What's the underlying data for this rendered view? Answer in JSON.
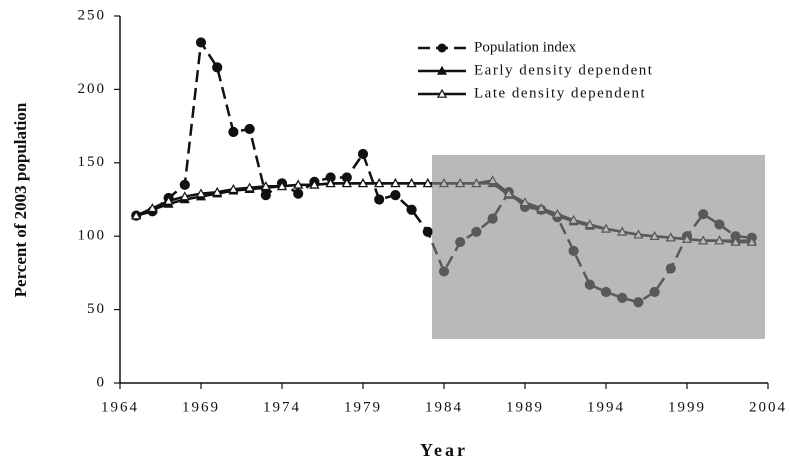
{
  "chart_data": {
    "type": "line",
    "x_label": "Year",
    "y_label": "Percent of 2003 population",
    "xlim": [
      1964,
      2004
    ],
    "xticks": [
      1964,
      1969,
      1974,
      1979,
      1984,
      1989,
      1994,
      1999,
      2004
    ],
    "ylim": [
      0,
      250
    ],
    "yticks": [
      0,
      50,
      100,
      150,
      200,
      250
    ],
    "x": [
      1965,
      1966,
      1967,
      1968,
      1969,
      1970,
      1971,
      1972,
      1973,
      1974,
      1975,
      1976,
      1977,
      1978,
      1979,
      1980,
      1981,
      1982,
      1983,
      1984,
      1985,
      1986,
      1987,
      1988,
      1989,
      1990,
      1991,
      1992,
      1993,
      1994,
      1995,
      1996,
      1997,
      1998,
      1999,
      2000,
      2001,
      2002,
      2003
    ],
    "series": [
      {
        "name": "Population index",
        "color": "#111111",
        "values": [
          114,
          117,
          126,
          135,
          232,
          215,
          171,
          173,
          128,
          136,
          129,
          137,
          140,
          140,
          156,
          125,
          128,
          118,
          103,
          76,
          96,
          103,
          112,
          130,
          120,
          118,
          113,
          90,
          67,
          62,
          58,
          55,
          62,
          78,
          100,
          115,
          108,
          100,
          99
        ]
      },
      {
        "name": "Early density dependent",
        "color": "#111111",
        "values": [
          114,
          118,
          122,
          125,
          127,
          129,
          131,
          132,
          133,
          134,
          135,
          135,
          136,
          136,
          136,
          136,
          136,
          136,
          136,
          136,
          136,
          136,
          136,
          128,
          122,
          118,
          114,
          110,
          107,
          105,
          103,
          101,
          100,
          99,
          98,
          97,
          97,
          97,
          97
        ]
      },
      {
        "name": "Late density dependent",
        "color": "#111111",
        "values": [
          114,
          119,
          124,
          127,
          129,
          130,
          132,
          133,
          134,
          134,
          135,
          135,
          136,
          136,
          136,
          136,
          136,
          136,
          136,
          136,
          136,
          136,
          138,
          129,
          123,
          119,
          115,
          111,
          108,
          105,
          103,
          101,
          100,
          99,
          98,
          97,
          97,
          96,
          96
        ]
      }
    ]
  }
}
